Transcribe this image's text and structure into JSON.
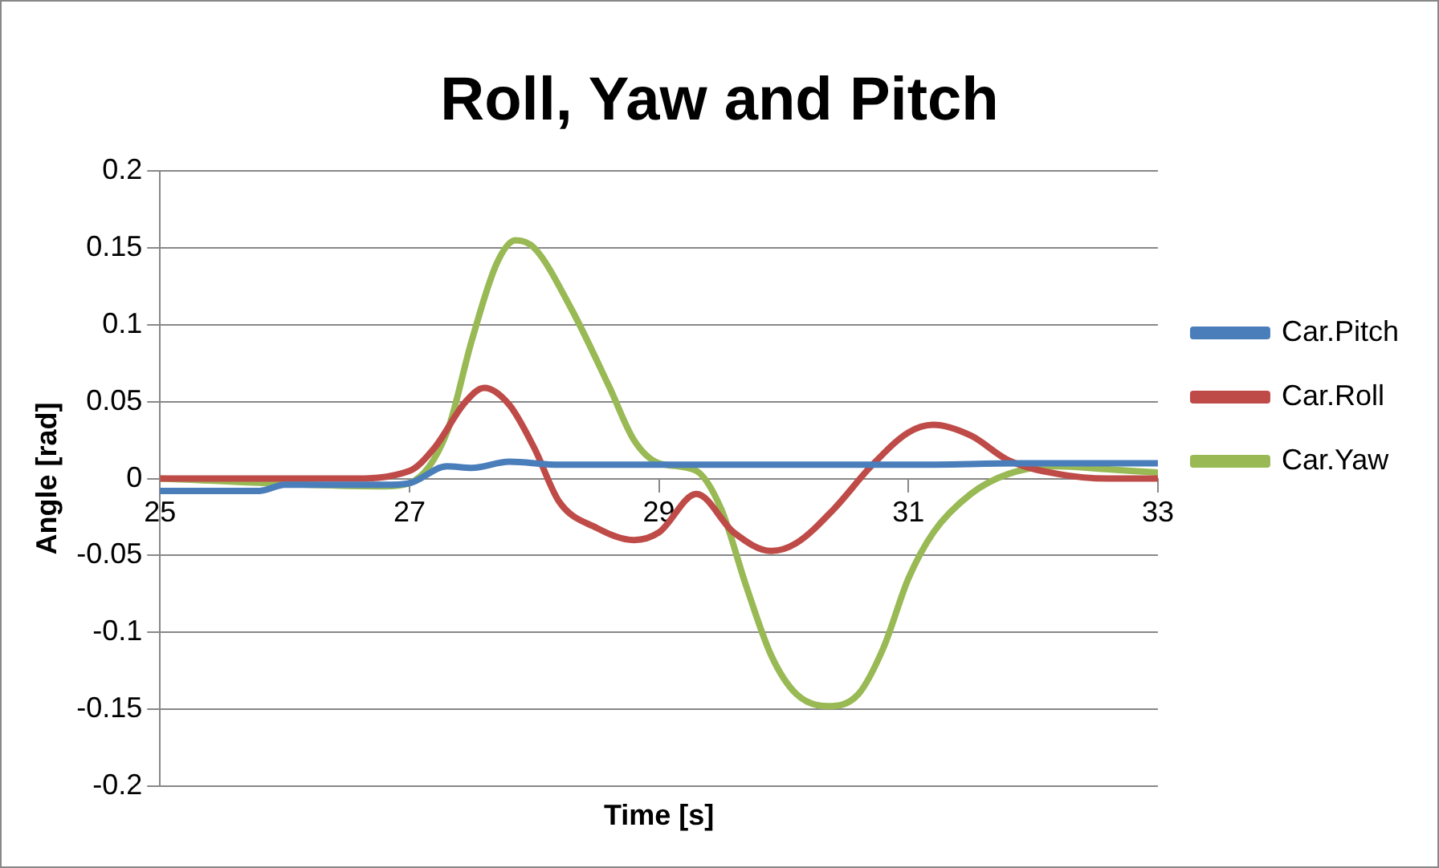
{
  "chart_data": {
    "type": "line",
    "title": "Roll, Yaw and Pitch",
    "xlabel": "Time [s]",
    "ylabel": "Angle [rad]",
    "xlim": [
      25,
      33
    ],
    "xticks": [
      25,
      27,
      29,
      31,
      33
    ],
    "ylim": [
      -0.2,
      0.2
    ],
    "yticks": [
      -0.2,
      -0.15,
      -0.1,
      -0.05,
      0,
      0.05,
      0.1,
      0.15,
      0.2
    ],
    "grid": "y",
    "legend": "right",
    "marker": "none",
    "line_style": "solid",
    "series": [
      {
        "name": "Car.Pitch",
        "color": "#4a7ebb",
        "x": [
          25,
          25.8,
          26,
          26.8,
          27,
          27.3,
          27.5,
          27.8,
          28.2,
          29,
          30,
          31,
          32,
          33
        ],
        "values": [
          -0.008,
          -0.008,
          -0.004,
          -0.004,
          -0.003,
          0.008,
          0.007,
          0.011,
          0.009,
          0.009,
          0.009,
          0.009,
          0.01,
          0.01
        ]
      },
      {
        "name": "Car.Roll",
        "color": "#be4b48",
        "x": [
          25,
          26.5,
          27,
          27.2,
          27.45,
          27.6,
          27.8,
          28,
          28.2,
          28.5,
          28.8,
          29,
          29.3,
          29.6,
          29.9,
          30.1,
          30.4,
          30.7,
          31,
          31.2,
          31.5,
          31.8,
          32.2,
          32.6,
          33
        ],
        "values": [
          0,
          0,
          0.005,
          0.02,
          0.05,
          0.059,
          0.048,
          0.02,
          -0.015,
          -0.032,
          -0.04,
          -0.035,
          -0.01,
          -0.035,
          -0.047,
          -0.042,
          -0.02,
          0.008,
          0.03,
          0.035,
          0.028,
          0.012,
          0.003,
          0,
          0
        ]
      },
      {
        "name": "Car.Yaw",
        "color": "#98b954",
        "x": [
          25,
          26.8,
          27,
          27.3,
          27.5,
          27.7,
          27.85,
          28,
          28.3,
          28.6,
          28.8,
          29,
          29.3,
          29.5,
          29.7,
          29.9,
          30.1,
          30.35,
          30.6,
          30.8,
          31,
          31.2,
          31.5,
          31.8,
          32.2,
          32.6,
          33
        ],
        "values": [
          0,
          -0.005,
          -0.003,
          0.03,
          0.09,
          0.14,
          0.155,
          0.15,
          0.11,
          0.06,
          0.025,
          0.01,
          0.005,
          -0.02,
          -0.07,
          -0.115,
          -0.14,
          -0.148,
          -0.14,
          -0.11,
          -0.065,
          -0.035,
          -0.01,
          0.003,
          0.008,
          0.006,
          0.004
        ]
      }
    ]
  }
}
